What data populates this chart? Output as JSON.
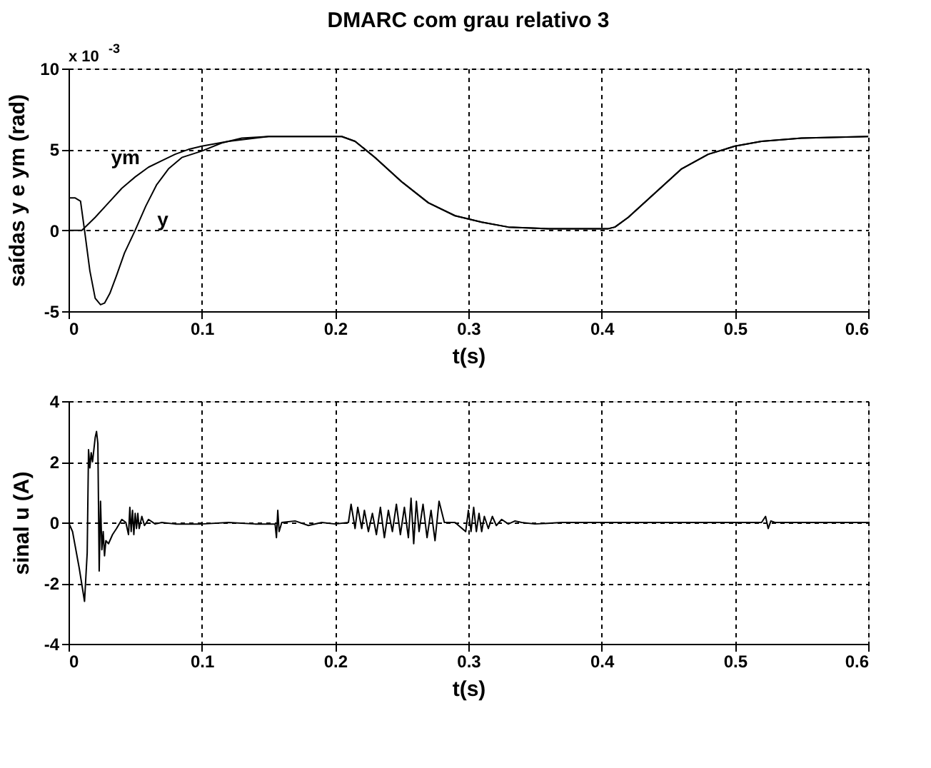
{
  "chart_data": [
    {
      "type": "line",
      "title": "DMARC com grau relativo 3",
      "xlabel": "t(s)",
      "ylabel": "saídas y e ym (rad)",
      "xlim": [
        0,
        0.6
      ],
      "xticks": [
        0,
        0.1,
        0.2,
        0.3,
        0.4,
        0.5,
        0.6
      ],
      "ylim": [
        -5,
        10
      ],
      "yticks": [
        -5,
        0,
        5,
        10
      ],
      "grid": true,
      "line_style": "solid",
      "annotations": [
        "x 10$^{-3}$",
        {
          "text": "ym",
          "x": 0.06,
          "y": 3.9
        },
        {
          "text": "y",
          "x": 0.058,
          "y": 1.5
        }
      ],
      "series": [
        {
          "color": "#000000",
          "x": [
            0,
            0.005,
            0.009,
            0.012,
            0.016,
            0.02,
            0.024,
            0.027,
            0.031,
            0.036,
            0.042,
            0.05,
            0.058,
            0.066,
            0.075,
            0.085,
            0.1,
            0.115,
            0.13,
            0.15,
            0.18,
            0.205,
            0.215,
            0.23,
            0.25,
            0.27,
            0.29,
            0.31,
            0.33,
            0.36,
            0.4,
            0.405,
            0.41,
            0.42,
            0.44,
            0.46,
            0.48,
            0.5,
            0.52,
            0.55,
            0.6
          ],
          "values": [
            2,
            2,
            1.8,
            0,
            -2.5,
            -4.2,
            -4.6,
            -4.5,
            -3.9,
            -2.8,
            -1.4,
            0,
            1.5,
            2.8,
            3.8,
            4.5,
            4.9,
            5.4,
            5.7,
            5.8,
            5.8,
            5.8,
            5.5,
            4.5,
            3.0,
            1.7,
            0.9,
            0.5,
            0.2,
            0.1,
            0.1,
            0.1,
            0.2,
            0.8,
            2.3,
            3.8,
            4.7,
            5.2,
            5.5,
            5.7,
            5.8
          ]
        },
        {
          "color": "#000000",
          "x": [
            0,
            0.01,
            0.02,
            0.03,
            0.04,
            0.05,
            0.06,
            0.07,
            0.08,
            0.09,
            0.1,
            0.12,
            0.15,
            0.18,
            0.205,
            0.215,
            0.23,
            0.25,
            0.27,
            0.29,
            0.31,
            0.33,
            0.36,
            0.4,
            0.405,
            0.41,
            0.42,
            0.44,
            0.46,
            0.48,
            0.5,
            0.52,
            0.55,
            0.6
          ],
          "values": [
            0,
            0,
            0.8,
            1.7,
            2.6,
            3.3,
            3.9,
            4.3,
            4.7,
            5.0,
            5.2,
            5.5,
            5.8,
            5.8,
            5.8,
            5.5,
            4.5,
            3.0,
            1.7,
            0.9,
            0.5,
            0.2,
            0.1,
            0.1,
            0.1,
            0.2,
            0.8,
            2.3,
            3.8,
            4.7,
            5.2,
            5.5,
            5.7,
            5.8
          ]
        }
      ]
    },
    {
      "type": "line",
      "xlabel": "t(s)",
      "ylabel": "sinal u (A)",
      "xlim": [
        0,
        0.6
      ],
      "xticks": [
        0,
        0.1,
        0.2,
        0.3,
        0.4,
        0.5,
        0.6
      ],
      "ylim": [
        -4,
        4
      ],
      "yticks": [
        -4,
        -2,
        0,
        2,
        4
      ],
      "grid": true,
      "line_style": "solid",
      "series": [
        {
          "color": "#000000",
          "x": [
            0,
            0.003,
            0.008,
            0.012,
            0.014,
            0.015,
            0.016,
            0.017,
            0.018,
            0.019,
            0.02,
            0.021,
            0.022,
            0.023,
            0.024,
            0.025,
            0.026,
            0.027,
            0.028,
            0.03,
            0.033,
            0.036,
            0.04,
            0.043,
            0.045,
            0.046,
            0.047,
            0.048,
            0.049,
            0.05,
            0.051,
            0.052,
            0.053,
            0.055,
            0.057,
            0.06,
            0.065,
            0.07,
            0.08,
            0.09,
            0.1,
            0.12,
            0.14,
            0.155,
            0.156,
            0.157,
            0.158,
            0.16,
            0.17,
            0.18,
            0.19,
            0.2,
            0.21,
            0.212,
            0.215,
            0.217,
            0.22,
            0.222,
            0.225,
            0.228,
            0.231,
            0.234,
            0.237,
            0.24,
            0.243,
            0.246,
            0.249,
            0.252,
            0.255,
            0.257,
            0.259,
            0.261,
            0.263,
            0.266,
            0.269,
            0.272,
            0.275,
            0.278,
            0.282,
            0.285,
            0.29,
            0.298,
            0.3,
            0.302,
            0.304,
            0.306,
            0.308,
            0.31,
            0.312,
            0.315,
            0.318,
            0.321,
            0.325,
            0.33,
            0.335,
            0.34,
            0.35,
            0.37,
            0.4,
            0.45,
            0.5,
            0.52,
            0.523,
            0.525,
            0.527,
            0.53,
            0.55,
            0.6
          ],
          "values": [
            0,
            -0.3,
            -1.5,
            -2.6,
            -1.0,
            2.4,
            1.8,
            2.3,
            2.0,
            2.4,
            2.8,
            3.0,
            2.6,
            -1.6,
            0.7,
            -0.9,
            -0.3,
            -1.1,
            -0.6,
            -0.7,
            -0.4,
            -0.2,
            0.1,
            0.0,
            -0.4,
            0.5,
            -0.3,
            0.4,
            -0.4,
            0.3,
            -0.2,
            0.3,
            -0.2,
            0.2,
            -0.1,
            0.1,
            -0.05,
            0.0,
            -0.05,
            -0.05,
            -0.05,
            0.0,
            -0.05,
            -0.05,
            -0.5,
            0.4,
            -0.3,
            0.0,
            0.05,
            -0.1,
            0.0,
            -0.05,
            0.0,
            0.6,
            -0.2,
            0.5,
            -0.2,
            0.4,
            -0.3,
            0.3,
            -0.4,
            0.5,
            -0.5,
            0.4,
            -0.3,
            0.6,
            -0.4,
            0.5,
            -0.5,
            0.8,
            -0.7,
            0.7,
            -0.3,
            0.6,
            -0.5,
            0.4,
            -0.6,
            0.7,
            0.0,
            0.0,
            0.0,
            -0.3,
            0.4,
            -0.3,
            0.5,
            -0.3,
            0.3,
            -0.3,
            0.2,
            -0.2,
            0.2,
            -0.1,
            0.1,
            -0.05,
            0.05,
            0.0,
            -0.05,
            0.0,
            0.0,
            0.0,
            0.0,
            0.0,
            0.2,
            -0.2,
            0.05,
            0.0,
            0.0,
            0.0
          ]
        }
      ]
    }
  ]
}
